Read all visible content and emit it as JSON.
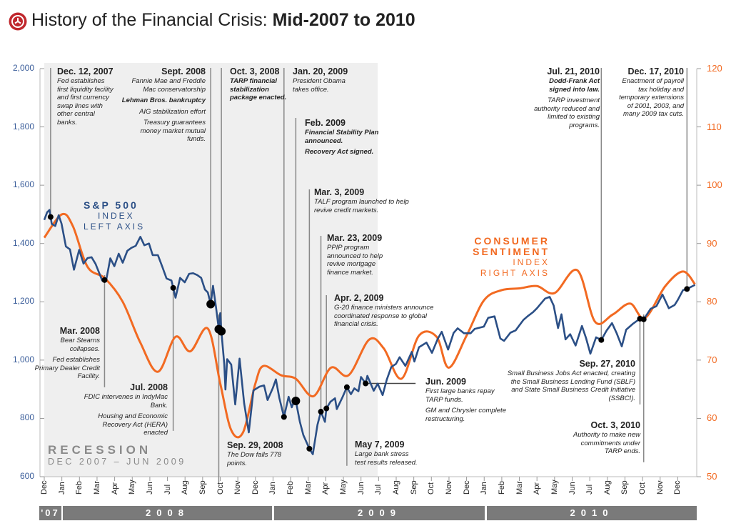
{
  "title": {
    "light": "History of the Financial Crisis: ",
    "bold": "Mid-2007 to 2010",
    "icon": "clock-icon",
    "icon_color": "#c0272d"
  },
  "colors": {
    "sp500": "#2b4f86",
    "sentiment": "#f26a22",
    "recession": "#efefef",
    "year_band": "#7a7a7a"
  },
  "labels": {
    "sp_name": "S&P 500",
    "sp_sub1": "INDEX",
    "sp_sub2": "LEFT AXIS",
    "cs_name1": "CONSUMER",
    "cs_name2": "SENTIMENT",
    "cs_sub1": "INDEX",
    "cs_sub2": "RIGHT AXIS",
    "recession": "RECESSION",
    "recession_range": "DEC 2007 – JUN 2009"
  },
  "chart_data": {
    "type": "line",
    "left_axis": {
      "ylim": [
        600,
        2000
      ],
      "ticks": [
        "600",
        "800",
        "1,000",
        "1,200",
        "1,400",
        "1,600",
        "1,800",
        "2,000"
      ]
    },
    "right_axis": {
      "ylim": [
        50,
        120
      ],
      "ticks": [
        "50",
        "60",
        "70",
        "80",
        "90",
        "100",
        "110",
        "120"
      ]
    },
    "x_months": [
      "Dec",
      "Jan",
      "Feb",
      "Mar",
      "Apr",
      "May",
      "Jun",
      "Jul",
      "Aug",
      "Sep",
      "Oct",
      "Nov",
      "Dec",
      "Jan",
      "Feb",
      "Mar",
      "Apr",
      "May",
      "Jun",
      "Jul",
      "Aug",
      "Sep",
      "Oct",
      "Nov",
      "Dec",
      "Jan",
      "Feb",
      "Mar",
      "Apr",
      "May",
      "Jun",
      "Jul",
      "Aug",
      "Sep",
      "Oct",
      "Nov",
      "Dec"
    ],
    "years": [
      "'07",
      "2008",
      "2009",
      "2010"
    ],
    "recession": [
      "2007-12-01",
      "2009-06-30"
    ],
    "series": [
      {
        "name": "S&P 500",
        "axis": "left",
        "points": [
          [
            "2007-12-01",
            1481
          ],
          [
            "2007-12-06",
            1507
          ],
          [
            "2007-12-10",
            1515
          ],
          [
            "2007-12-14",
            1467
          ],
          [
            "2007-12-20",
            1460
          ],
          [
            "2007-12-26",
            1497
          ],
          [
            "2007-12-31",
            1468
          ],
          [
            "2008-01-08",
            1390
          ],
          [
            "2008-01-15",
            1380
          ],
          [
            "2008-01-22",
            1310
          ],
          [
            "2008-01-31",
            1378
          ],
          [
            "2008-02-08",
            1331
          ],
          [
            "2008-02-15",
            1350
          ],
          [
            "2008-02-22",
            1353
          ],
          [
            "2008-02-29",
            1330
          ],
          [
            "2008-03-10",
            1273
          ],
          [
            "2008-03-17",
            1276
          ],
          [
            "2008-03-24",
            1349
          ],
          [
            "2008-03-31",
            1322
          ],
          [
            "2008-04-08",
            1365
          ],
          [
            "2008-04-15",
            1334
          ],
          [
            "2008-04-23",
            1375
          ],
          [
            "2008-04-30",
            1385
          ],
          [
            "2008-05-07",
            1392
          ],
          [
            "2008-05-15",
            1423
          ],
          [
            "2008-05-22",
            1394
          ],
          [
            "2008-05-30",
            1400
          ],
          [
            "2008-06-06",
            1360
          ],
          [
            "2008-06-15",
            1360
          ],
          [
            "2008-06-23",
            1318
          ],
          [
            "2008-06-30",
            1280
          ],
          [
            "2008-07-08",
            1273
          ],
          [
            "2008-07-15",
            1214
          ],
          [
            "2008-07-23",
            1282
          ],
          [
            "2008-07-31",
            1267
          ],
          [
            "2008-08-08",
            1296
          ],
          [
            "2008-08-15",
            1298
          ],
          [
            "2008-08-22",
            1292
          ],
          [
            "2008-08-29",
            1282
          ],
          [
            "2008-09-05",
            1242
          ],
          [
            "2008-09-10",
            1232
          ],
          [
            "2008-09-15",
            1192
          ],
          [
            "2008-09-19",
            1255
          ],
          [
            "2008-09-24",
            1185
          ],
          [
            "2008-09-29",
            1106
          ],
          [
            "2008-10-01",
            1161
          ],
          [
            "2008-10-03",
            1099
          ],
          [
            "2008-10-08",
            985
          ],
          [
            "2008-10-10",
            899
          ],
          [
            "2008-10-13",
            1003
          ],
          [
            "2008-10-20",
            985
          ],
          [
            "2008-10-27",
            848
          ],
          [
            "2008-11-04",
            1005
          ],
          [
            "2008-11-12",
            852
          ],
          [
            "2008-11-20",
            752
          ],
          [
            "2008-11-28",
            896
          ],
          [
            "2008-12-08",
            909
          ],
          [
            "2008-12-16",
            913
          ],
          [
            "2008-12-22",
            863
          ],
          [
            "2008-12-31",
            903
          ],
          [
            "2009-01-06",
            934
          ],
          [
            "2009-01-12",
            870
          ],
          [
            "2009-01-20",
            805
          ],
          [
            "2009-01-28",
            874
          ],
          [
            "2009-02-03",
            838
          ],
          [
            "2009-02-09",
            870
          ],
          [
            "2009-02-17",
            789
          ],
          [
            "2009-02-23",
            743
          ],
          [
            "2009-03-03",
            696
          ],
          [
            "2009-03-09",
            677
          ],
          [
            "2009-03-17",
            778
          ],
          [
            "2009-03-23",
            823
          ],
          [
            "2009-03-30",
            788
          ],
          [
            "2009-04-02",
            834
          ],
          [
            "2009-04-09",
            857
          ],
          [
            "2009-04-17",
            869
          ],
          [
            "2009-04-20",
            832
          ],
          [
            "2009-04-30",
            873
          ],
          [
            "2009-05-07",
            907
          ],
          [
            "2009-05-14",
            883
          ],
          [
            "2009-05-20",
            903
          ],
          [
            "2009-05-27",
            893
          ],
          [
            "2009-06-01",
            942
          ],
          [
            "2009-06-09",
            920
          ],
          [
            "2009-06-12",
            946
          ],
          [
            "2009-06-23",
            895
          ],
          [
            "2009-06-30",
            919
          ],
          [
            "2009-07-08",
            880
          ],
          [
            "2009-07-15",
            932
          ],
          [
            "2009-07-23",
            976
          ],
          [
            "2009-07-31",
            987
          ],
          [
            "2009-08-07",
            1010
          ],
          [
            "2009-08-17",
            980
          ],
          [
            "2009-08-28",
            1028
          ],
          [
            "2009-09-02",
            995
          ],
          [
            "2009-09-10",
            1044
          ],
          [
            "2009-09-23",
            1060
          ],
          [
            "2009-10-02",
            1025
          ],
          [
            "2009-10-12",
            1073
          ],
          [
            "2009-10-19",
            1097
          ],
          [
            "2009-10-30",
            1036
          ],
          [
            "2009-11-09",
            1093
          ],
          [
            "2009-11-16",
            1109
          ],
          [
            "2009-11-27",
            1092
          ],
          [
            "2009-12-08",
            1092
          ],
          [
            "2009-12-15",
            1107
          ],
          [
            "2009-12-31",
            1115
          ],
          [
            "2010-01-08",
            1145
          ],
          [
            "2010-01-19",
            1150
          ],
          [
            "2010-01-29",
            1074
          ],
          [
            "2010-02-05",
            1066
          ],
          [
            "2010-02-16",
            1094
          ],
          [
            "2010-02-25",
            1102
          ],
          [
            "2010-03-08",
            1138
          ],
          [
            "2010-03-15",
            1150
          ],
          [
            "2010-03-25",
            1165
          ],
          [
            "2010-04-01",
            1178
          ],
          [
            "2010-04-15",
            1211
          ],
          [
            "2010-04-23",
            1217
          ],
          [
            "2010-04-30",
            1187
          ],
          [
            "2010-05-07",
            1110
          ],
          [
            "2010-05-13",
            1157
          ],
          [
            "2010-05-20",
            1071
          ],
          [
            "2010-05-28",
            1089
          ],
          [
            "2010-06-07",
            1050
          ],
          [
            "2010-06-18",
            1117
          ],
          [
            "2010-06-25",
            1076
          ],
          [
            "2010-07-02",
            1022
          ],
          [
            "2010-07-12",
            1078
          ],
          [
            "2010-07-21",
            1069
          ],
          [
            "2010-07-30",
            1101
          ],
          [
            "2010-08-09",
            1127
          ],
          [
            "2010-08-17",
            1093
          ],
          [
            "2010-08-26",
            1047
          ],
          [
            "2010-09-03",
            1104
          ],
          [
            "2010-09-15",
            1125
          ],
          [
            "2010-09-27",
            1142
          ],
          [
            "2010-10-03",
            1140
          ],
          [
            "2010-10-15",
            1176
          ],
          [
            "2010-10-25",
            1185
          ],
          [
            "2010-11-05",
            1225
          ],
          [
            "2010-11-16",
            1178
          ],
          [
            "2010-11-26",
            1189
          ],
          [
            "2010-12-01",
            1206
          ],
          [
            "2010-12-10",
            1240
          ],
          [
            "2010-12-17",
            1244
          ],
          [
            "2010-12-31",
            1258
          ]
        ]
      },
      {
        "name": "Consumer Sentiment",
        "axis": "right",
        "points": [
          [
            "2007-12-01",
            91
          ],
          [
            "2008-01-01",
            95
          ],
          [
            "2008-01-20",
            93
          ],
          [
            "2008-02-15",
            86
          ],
          [
            "2008-03-15",
            84
          ],
          [
            "2008-04-15",
            80
          ],
          [
            "2008-05-15",
            73
          ],
          [
            "2008-06-15",
            68
          ],
          [
            "2008-07-15",
            74
          ],
          [
            "2008-08-10",
            71.5
          ],
          [
            "2008-09-10",
            75.4
          ],
          [
            "2008-10-01",
            66
          ],
          [
            "2008-10-20",
            58
          ],
          [
            "2008-11-10",
            57.6
          ],
          [
            "2008-12-01",
            66
          ],
          [
            "2008-12-15",
            69
          ],
          [
            "2009-01-15",
            67.4
          ],
          [
            "2009-02-10",
            66.8
          ],
          [
            "2009-03-10",
            63.8
          ],
          [
            "2009-04-10",
            68.7
          ],
          [
            "2009-05-10",
            67.4
          ],
          [
            "2009-06-15",
            73.5
          ],
          [
            "2009-07-10",
            72
          ],
          [
            "2009-08-10",
            66.8
          ],
          [
            "2009-09-10",
            74.2
          ],
          [
            "2009-10-10",
            74
          ],
          [
            "2009-10-31",
            68.7
          ],
          [
            "2009-12-01",
            74.2
          ],
          [
            "2010-01-01",
            80.3
          ],
          [
            "2010-02-01",
            82
          ],
          [
            "2010-03-01",
            82.3
          ],
          [
            "2010-04-01",
            82.7
          ],
          [
            "2010-05-01",
            81.5
          ],
          [
            "2010-06-10",
            85.4
          ],
          [
            "2010-07-10",
            76.6
          ],
          [
            "2010-08-10",
            77.8
          ],
          [
            "2010-09-10",
            79.7
          ],
          [
            "2010-10-05",
            77.2
          ],
          [
            "2010-11-10",
            82.7
          ],
          [
            "2010-12-10",
            85.2
          ],
          [
            "2010-12-31",
            83
          ]
        ]
      }
    ],
    "events": [
      {
        "date": "2007-12-12",
        "head": "Dec. 12, 2007",
        "lines": [
          {
            "t": "Fed establishes first liquidity facility and first currency swap lines with other central banks."
          }
        ]
      },
      {
        "date": "2008-03-14",
        "head": "Mar. 2008",
        "lines": [
          {
            "t": "Bear Stearns collapses."
          },
          {
            "t": "Fed establishes Primary Dealer Credit Facility."
          }
        ]
      },
      {
        "date": "2008-07-11",
        "head": "Jul. 2008",
        "lines": [
          {
            "t": "FDIC intervenes in IndyMac Bank."
          },
          {
            "t": "Housing and Economic Recovery Act (HERA) enacted"
          }
        ]
      },
      {
        "date": "2008-09-15",
        "head": "Sept. 2008",
        "lines": [
          {
            "t": "Fannie Mae and Freddie Mac conservatorship"
          },
          {
            "t": "Lehman Bros. bankruptcy",
            "bold": true
          },
          {
            "t": "AIG stabilization effort"
          },
          {
            "t": "Treasury guarantees money market mutual funds."
          }
        ]
      },
      {
        "date": "2008-09-29",
        "head": "Sep. 29, 2008",
        "lines": [
          {
            "t": "The Dow falls 778 points."
          }
        ]
      },
      {
        "date": "2008-10-03",
        "head": "Oct. 3, 2008",
        "lines": [
          {
            "t": "TARP financial stabilization package enacted.",
            "bold": true
          }
        ]
      },
      {
        "date": "2009-01-20",
        "head": "Jan. 20, 2009",
        "lines": [
          {
            "t": "President Obama takes office."
          }
        ]
      },
      {
        "date": "2009-02-10",
        "head": "Feb. 2009",
        "lines": [
          {
            "t": "Financial Stability Plan announced.",
            "bold": true
          },
          {
            "t": "Recovery Act signed.",
            "bold": true
          }
        ]
      },
      {
        "date": "2009-03-03",
        "head": "Mar. 3, 2009",
        "lines": [
          {
            "t": "TALF program launched to help revive credit markets."
          }
        ]
      },
      {
        "date": "2009-03-23",
        "head": "Mar. 23, 2009",
        "lines": [
          {
            "t": "PPIP program announced to help revive mortgage finance market."
          }
        ]
      },
      {
        "date": "2009-04-02",
        "head": "Apr. 2, 2009",
        "lines": [
          {
            "t": "G-20 finance ministers announce coordinated response to global financial crisis."
          }
        ]
      },
      {
        "date": "2009-05-07",
        "head": "May 7, 2009",
        "lines": [
          {
            "t": "Large bank stress test results released."
          }
        ]
      },
      {
        "date": "2009-06-09",
        "head": "Jun. 2009",
        "lines": [
          {
            "t": "First large banks repay TARP funds."
          },
          {
            "t": "GM and Chrysler complete restructuring."
          }
        ]
      },
      {
        "date": "2010-07-21",
        "head": "Jul. 21, 2010",
        "lines": [
          {
            "t": "Dodd-Frank Act signed into law.",
            "bold": true
          },
          {
            "t": "TARP investment authority reduced and limited to existing programs."
          }
        ]
      },
      {
        "date": "2010-09-27",
        "head": "Sep. 27, 2010",
        "lines": [
          {
            "t": "Small Business Jobs Act enacted, creating the Small Business Lending Fund (SBLF) and State Small Business Credit Initiative (SSBCI)."
          }
        ]
      },
      {
        "date": "2010-10-03",
        "head": "Oct. 3, 2010",
        "lines": [
          {
            "t": "Authority to make new commitments under TARP ends."
          }
        ]
      },
      {
        "date": "2010-12-17",
        "head": "Dec. 17, 2010",
        "lines": [
          {
            "t": "Enactment of payroll tax holiday and temporary extensions of 2001, 2003, and many 2009 tax cuts."
          }
        ]
      }
    ]
  }
}
